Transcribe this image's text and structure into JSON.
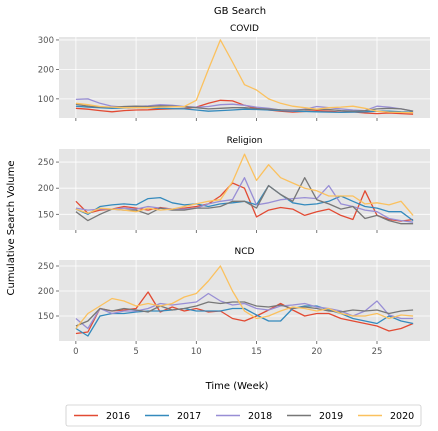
{
  "figure": {
    "suptitle": "GB Search",
    "ylabel": "Cumulative Search Volume",
    "xlabel": "Time (Week)"
  },
  "legend": {
    "placement": "bottom-center",
    "entries": [
      "2016",
      "2017",
      "2018",
      "2019",
      "2020"
    ]
  },
  "colors": {
    "2016": "#E24A33",
    "2017": "#348ABD",
    "2018": "#988ED5",
    "2019": "#777777",
    "2020": "#FBC15E",
    "panel_bg": "#E5E5E5",
    "grid": "#FFFFFF"
  },
  "chart_data": [
    {
      "type": "line",
      "title": "COVID",
      "x": [
        0,
        1,
        2,
        3,
        4,
        5,
        6,
        7,
        8,
        9,
        10,
        11,
        12,
        13,
        14,
        15,
        16,
        17,
        18,
        19,
        20,
        21,
        22,
        23,
        24,
        25,
        26,
        27,
        28
      ],
      "xlim": [
        -1.4,
        29.4
      ],
      "ylim": [
        35,
        310
      ],
      "yticks": [
        100,
        200,
        300
      ],
      "xticks": [
        0,
        5,
        10,
        15,
        20,
        25
      ],
      "show_xtick_labels": false,
      "grid": true,
      "series": [
        {
          "name": "2016",
          "values": [
            68,
            65,
            60,
            56,
            60,
            62,
            63,
            65,
            66,
            67,
            72,
            85,
            95,
            93,
            78,
            68,
            62,
            58,
            55,
            57,
            60,
            58,
            55,
            56,
            52,
            50,
            52,
            50,
            48
          ]
        },
        {
          "name": "2017",
          "values": [
            75,
            72,
            70,
            68,
            69,
            70,
            70,
            68,
            67,
            66,
            62,
            58,
            60,
            62,
            65,
            64,
            62,
            60,
            58,
            57,
            56,
            55,
            54,
            55,
            56,
            58,
            58,
            56,
            55
          ]
        },
        {
          "name": "2018",
          "values": [
            98,
            100,
            85,
            75,
            72,
            74,
            76,
            80,
            78,
            74,
            72,
            74,
            80,
            82,
            78,
            72,
            68,
            62,
            60,
            65,
            74,
            70,
            66,
            62,
            60,
            75,
            72,
            66,
            58
          ]
        },
        {
          "name": "2019",
          "values": [
            82,
            75,
            72,
            72,
            74,
            75,
            74,
            76,
            75,
            73,
            70,
            66,
            68,
            70,
            70,
            67,
            65,
            63,
            62,
            63,
            65,
            64,
            60,
            58,
            60,
            66,
            68,
            66,
            58
          ]
        },
        {
          "name": "2020",
          "values": [
            85,
            80,
            74,
            72,
            70,
            70,
            70,
            72,
            73,
            74,
            95,
            200,
            300,
            225,
            148,
            130,
            100,
            85,
            75,
            70,
            65,
            70,
            72,
            75,
            68,
            58,
            55,
            54,
            53
          ]
        }
      ]
    },
    {
      "type": "line",
      "title": "Religion",
      "x": [
        0,
        1,
        2,
        3,
        4,
        5,
        6,
        7,
        8,
        9,
        10,
        11,
        12,
        13,
        14,
        15,
        16,
        17,
        18,
        19,
        20,
        21,
        22,
        23,
        24,
        25,
        26,
        27,
        28
      ],
      "xlim": [
        -1.4,
        29.4
      ],
      "ylim": [
        120,
        275
      ],
      "yticks": [
        150,
        200,
        250
      ],
      "xticks": [
        0,
        5,
        10,
        15,
        20,
        25
      ],
      "show_xtick_labels": false,
      "grid": true,
      "series": [
        {
          "name": "2016",
          "values": [
            175,
            152,
            158,
            160,
            165,
            162,
            158,
            163,
            160,
            162,
            165,
            170,
            185,
            210,
            200,
            145,
            158,
            163,
            160,
            148,
            155,
            160,
            148,
            140,
            195,
            148,
            140,
            137,
            140
          ]
        },
        {
          "name": "2017",
          "values": [
            160,
            150,
            165,
            168,
            170,
            168,
            180,
            182,
            172,
            168,
            170,
            165,
            170,
            172,
            175,
            168,
            205,
            188,
            172,
            168,
            170,
            175,
            185,
            175,
            165,
            162,
            155,
            155,
            138
          ]
        },
        {
          "name": "2018",
          "values": [
            162,
            158,
            160,
            160,
            162,
            160,
            165,
            162,
            160,
            160,
            162,
            170,
            175,
            178,
            220,
            168,
            172,
            178,
            180,
            182,
            180,
            205,
            170,
            165,
            158,
            155,
            142,
            138,
            135
          ]
        },
        {
          "name": "2019",
          "values": [
            155,
            138,
            150,
            160,
            158,
            158,
            150,
            162,
            158,
            158,
            162,
            162,
            165,
            175,
            175,
            162,
            205,
            188,
            175,
            220,
            178,
            170,
            160,
            165,
            142,
            148,
            138,
            132,
            132
          ]
        },
        {
          "name": "2020",
          "values": [
            160,
            152,
            162,
            160,
            158,
            155,
            162,
            158,
            160,
            165,
            170,
            175,
            178,
            212,
            265,
            215,
            245,
            220,
            210,
            200,
            195,
            185,
            185,
            185,
            170,
            172,
            168,
            175,
            148
          ]
        }
      ]
    },
    {
      "type": "line",
      "title": "NCD",
      "x": [
        0,
        1,
        2,
        3,
        4,
        5,
        6,
        7,
        8,
        9,
        10,
        11,
        12,
        13,
        14,
        15,
        16,
        17,
        18,
        19,
        20,
        21,
        22,
        23,
        24,
        25,
        26,
        27,
        28
      ],
      "xlim": [
        -1.4,
        29.4
      ],
      "ylim": [
        100,
        262
      ],
      "yticks": [
        150,
        200,
        250
      ],
      "xticks": [
        0,
        5,
        10,
        15,
        20,
        25
      ],
      "xticklabels": [
        "0",
        "5",
        "10",
        "15",
        "20",
        "25"
      ],
      "show_xtick_labels": true,
      "grid": true,
      "series": [
        {
          "name": "2016",
          "values": [
            115,
            118,
            165,
            160,
            162,
            165,
            198,
            158,
            168,
            160,
            165,
            158,
            160,
            145,
            140,
            150,
            162,
            175,
            162,
            150,
            155,
            155,
            145,
            140,
            135,
            130,
            120,
            125,
            135
          ]
        },
        {
          "name": "2017",
          "values": [
            125,
            110,
            150,
            155,
            155,
            158,
            160,
            160,
            162,
            165,
            160,
            160,
            160,
            165,
            165,
            152,
            140,
            140,
            165,
            170,
            170,
            162,
            155,
            145,
            140,
            135,
            150,
            140,
            135
          ]
        },
        {
          "name": "2018",
          "values": [
            145,
            125,
            165,
            155,
            160,
            160,
            165,
            175,
            172,
            175,
            178,
            195,
            180,
            172,
            175,
            165,
            162,
            170,
            172,
            175,
            168,
            165,
            160,
            150,
            160,
            180,
            152,
            145,
            145
          ]
        },
        {
          "name": "2019",
          "values": [
            130,
            140,
            165,
            160,
            165,
            162,
            158,
            170,
            162,
            165,
            170,
            178,
            175,
            178,
            178,
            170,
            168,
            172,
            165,
            168,
            165,
            160,
            158,
            162,
            160,
            162,
            155,
            160,
            162
          ]
        },
        {
          "name": "2020",
          "values": [
            125,
            155,
            170,
            185,
            180,
            170,
            175,
            170,
            175,
            188,
            195,
            220,
            250,
            200,
            160,
            145,
            150,
            160,
            168,
            165,
            160,
            165,
            155,
            150,
            150,
            155,
            145,
            152,
            150
          ]
        }
      ]
    }
  ]
}
